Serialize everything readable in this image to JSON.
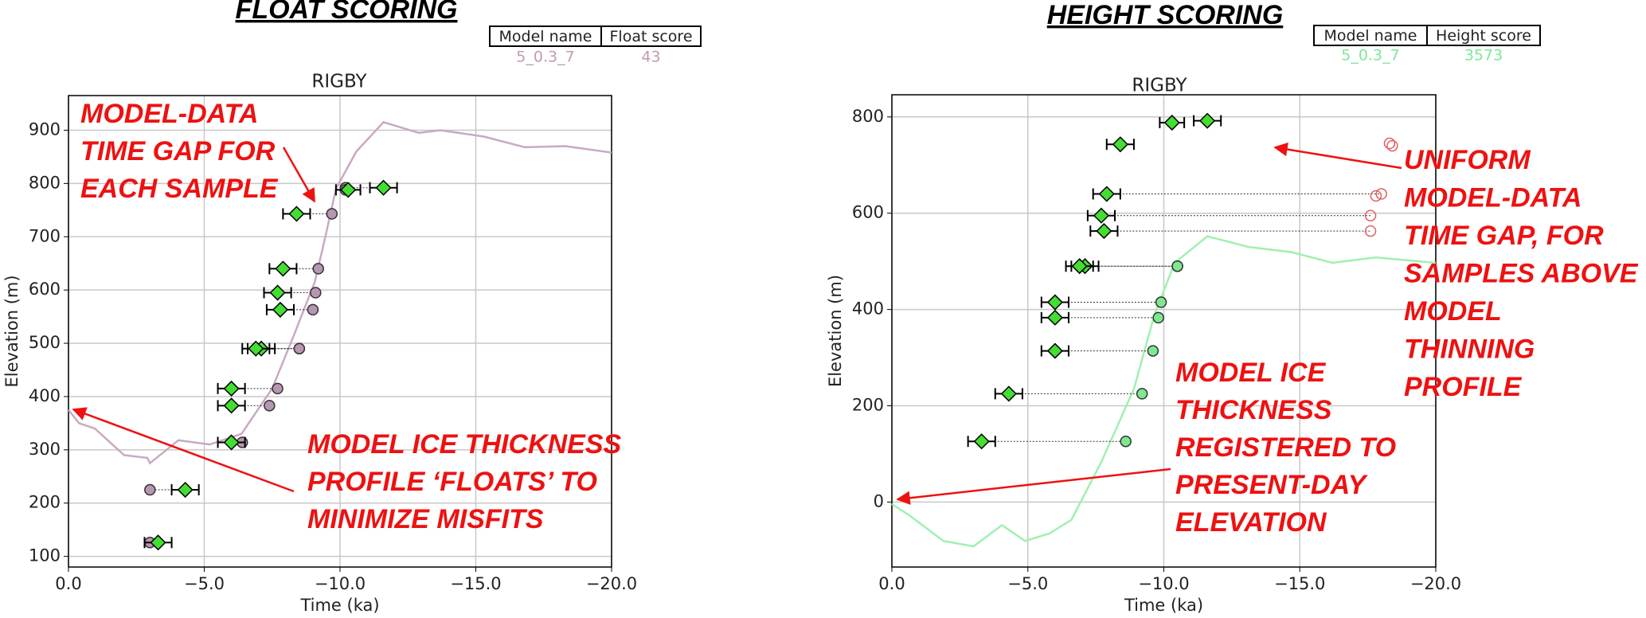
{
  "chart_data": [
    {
      "type": "scatter",
      "panel_title": "FLOAT SCORING",
      "title": "RIGBY",
      "x_label": "Time (ka)",
      "y_label": "Elevation (m)",
      "table": {
        "header": [
          "Model name",
          "Float score"
        ],
        "row": [
          "5_0.3_7",
          "43"
        ],
        "color": "#c09ab5"
      },
      "xlim": [
        0,
        -20
      ],
      "ylim": [
        80,
        965
      ],
      "xticks": [
        {
          "value": 0,
          "label": "0.0"
        },
        {
          "value": -5,
          "label": "−5.0"
        },
        {
          "value": -10,
          "label": "−10.0"
        },
        {
          "value": -15,
          "label": "−15.0"
        },
        {
          "value": -20,
          "label": "−20.0"
        }
      ],
      "yticks": [
        100,
        200,
        300,
        400,
        500,
        600,
        700,
        800,
        900
      ],
      "grid": true,
      "samples": {
        "color": "#44dd33",
        "x": [
          -11.6,
          -10.3,
          -8.4,
          -7.9,
          -7.7,
          -7.8,
          -7.1,
          -6.9,
          -6.0,
          -6.0,
          -6.0,
          -4.3,
          -3.3
        ],
        "values": [
          792,
          788,
          743,
          640,
          595,
          563,
          490,
          490,
          415,
          383,
          314,
          225,
          126
        ],
        "xerr": [
          0.5,
          0.45,
          0.5,
          0.5,
          0.5,
          0.5,
          0.5,
          0.5,
          0.5,
          0.5,
          0.5,
          0.5,
          0.5
        ]
      },
      "model_points": [
        {
          "color": "#b895b0",
          "hollow": false,
          "x": [
            -10.2,
            -10.2,
            -9.7,
            -9.2,
            -9.1,
            -9.0,
            -8.5,
            -8.5,
            -7.7,
            -7.4,
            -6.4,
            -3.0,
            -3.0
          ],
          "values": [
            792,
            788,
            743,
            640,
            595,
            563,
            490,
            490,
            415,
            383,
            314,
            225,
            126
          ]
        }
      ],
      "model_curve": {
        "color": "#c9a9c3",
        "x": [
          0,
          -0.39,
          -0.97,
          -2.05,
          -2.9,
          -3.0,
          -4.05,
          -5.2,
          -6.37,
          -7.5,
          -8.3,
          -9.07,
          -9.46,
          -9.85,
          -10.6,
          -11.6,
          -12.9,
          -13.7,
          -15.3,
          -16.8,
          -18.3,
          -20.0
        ],
        "values": [
          375,
          350,
          340,
          290,
          285,
          275,
          318,
          310,
          330,
          415,
          515,
          615,
          700,
          790,
          860,
          915,
          895,
          900,
          888,
          868,
          870,
          858
        ]
      },
      "annotations": [
        [
          "MODEL-DATA",
          "TIME GAP FOR",
          "EACH SAMPLE"
        ],
        [
          "MODEL ICE THICKNESS",
          "PROFILE ‘FLOATS’ TO",
          "MINIMIZE MISFITS"
        ]
      ]
    },
    {
      "type": "scatter",
      "panel_title": "HEIGHT SCORING",
      "title": "RIGBY",
      "x_label": "Time (ka)",
      "y_label": "Elevation (m)",
      "table": {
        "header": [
          "Model name",
          "Height score"
        ],
        "row": [
          "5_0.3_7",
          "3573"
        ],
        "color": "#7ee89a"
      },
      "xlim": [
        0,
        -20
      ],
      "ylim": [
        -135,
        846
      ],
      "xticks": [
        {
          "value": 0,
          "label": "0.0"
        },
        {
          "value": -5,
          "label": "−5.0"
        },
        {
          "value": -10,
          "label": "−10.0"
        },
        {
          "value": -15,
          "label": "−15.0"
        },
        {
          "value": -20,
          "label": "−20.0"
        }
      ],
      "yticks": [
        0,
        200,
        400,
        600,
        800
      ],
      "grid": true,
      "samples": {
        "color": "#44dd33",
        "x": [
          -11.6,
          -10.3,
          -8.4,
          -7.9,
          -7.7,
          -7.8,
          -7.1,
          -6.9,
          -6.0,
          -6.0,
          -6.0,
          -4.3,
          -3.3
        ],
        "values": [
          792,
          788,
          743,
          640,
          595,
          563,
          490,
          490,
          415,
          383,
          314,
          225,
          126
        ],
        "xerr": [
          0.5,
          0.45,
          0.5,
          0.5,
          0.5,
          0.5,
          0.5,
          0.5,
          0.5,
          0.5,
          0.5,
          0.5,
          0.5
        ]
      },
      "model_points": [
        {
          "color": "#7de88f",
          "hollow": false,
          "x": [
            -10.5,
            -10.5,
            -9.9,
            -9.8,
            -9.6,
            -9.2,
            -8.6
          ],
          "values": [
            490,
            490,
            415,
            383,
            314,
            225,
            126
          ]
        },
        {
          "color": "#e06060",
          "hollow": true,
          "x": [
            -18.4,
            -18.3,
            -18.0,
            -17.8,
            -17.6,
            -17.6
          ],
          "values": [
            740,
            745,
            640,
            636,
            595,
            563
          ]
        }
      ],
      "model_curve": {
        "color": "#a0f0b0",
        "x": [
          0,
          -0.6,
          -1.9,
          -3.0,
          -4.05,
          -4.9,
          -5.8,
          -6.6,
          -7.7,
          -8.9,
          -9.65,
          -10.4,
          -11.6,
          -13.1,
          -14.7,
          -16.2,
          -17.8,
          -20.0
        ],
        "values": [
          -4,
          -26,
          -81,
          -92,
          -48,
          -81,
          -65,
          -37,
          83,
          235,
          388,
          497,
          552,
          530,
          519,
          497,
          508,
          497
        ]
      },
      "annotations": [
        [
          "UNIFORM",
          "MODEL-DATA",
          "TIME GAP, FOR",
          "SAMPLES ABOVE",
          "MODEL",
          "THINNING",
          "PROFILE"
        ],
        [
          "MODEL ICE",
          "THICKNESS",
          "REGISTERED TO",
          "PRESENT-DAY",
          "ELEVATION"
        ]
      ]
    }
  ]
}
